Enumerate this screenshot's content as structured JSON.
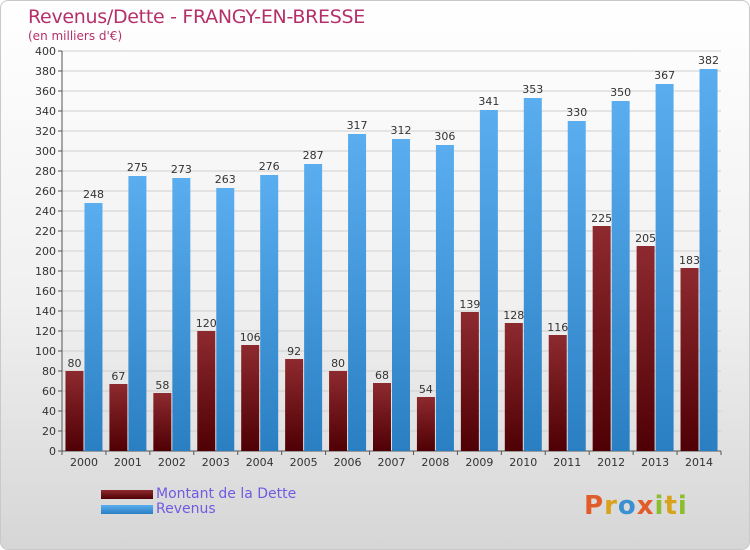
{
  "header": {
    "title": "Revenus/Dette - FRANGY-EN-BRESSE",
    "subtitle": "(en milliers d'€)"
  },
  "legend": {
    "items": [
      {
        "label": "Montant de la Dette",
        "color": "#7a0f14"
      },
      {
        "label": "Revenus",
        "color": "#3f95d8"
      }
    ]
  },
  "logo": {
    "text": "Proxiti",
    "letters": [
      {
        "ch": "P",
        "color": "#e25c2b"
      },
      {
        "ch": "r",
        "color": "#d8a21a"
      },
      {
        "ch": "o",
        "color": "#3c8fd0"
      },
      {
        "ch": "x",
        "color": "#e25c2b"
      },
      {
        "ch": "i",
        "color": "#8cbd2e"
      },
      {
        "ch": "t",
        "color": "#d8a21a"
      },
      {
        "ch": "i",
        "color": "#8cbd2e"
      }
    ]
  },
  "chart_data": {
    "type": "bar",
    "title": "Revenus/Dette - FRANGY-EN-BRESSE",
    "subtitle": "(en milliers d'€)",
    "categories": [
      "2000",
      "2001",
      "2002",
      "2003",
      "2004",
      "2005",
      "2006",
      "2007",
      "2008",
      "2009",
      "2010",
      "2011",
      "2012",
      "2013",
      "2014"
    ],
    "series": [
      {
        "name": "Montant de la Dette",
        "color": "#7a0f14",
        "values": [
          80,
          67,
          58,
          120,
          106,
          92,
          80,
          68,
          54,
          139,
          128,
          116,
          225,
          205,
          183
        ]
      },
      {
        "name": "Revenus",
        "color": "#3f95d8",
        "values": [
          248,
          275,
          273,
          263,
          276,
          287,
          317,
          312,
          306,
          341,
          353,
          330,
          350,
          367,
          382
        ]
      }
    ],
    "ylim": [
      0,
      400
    ],
    "ytick_step": 20,
    "grid": true,
    "legend_position": "bottom-left"
  }
}
